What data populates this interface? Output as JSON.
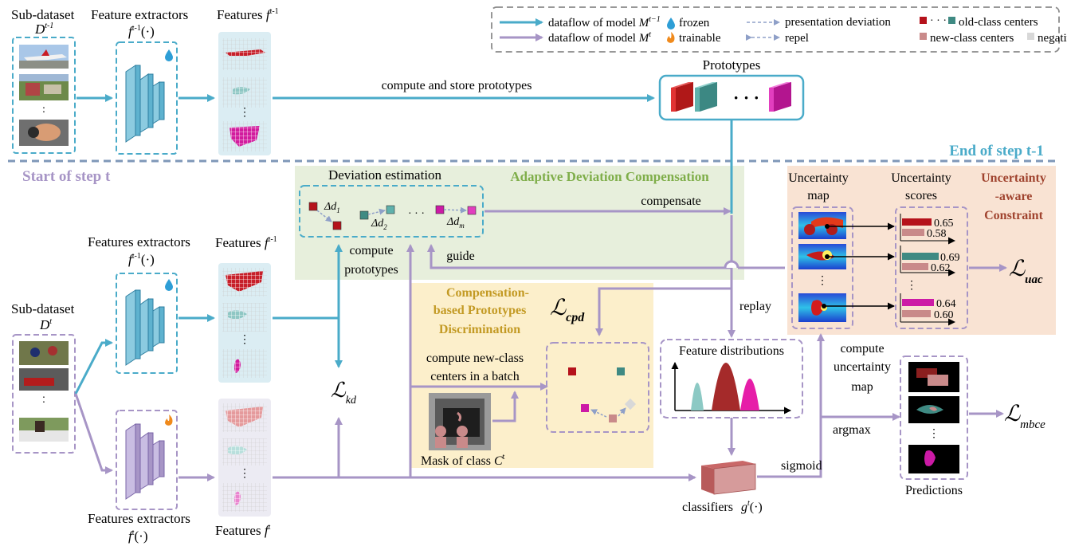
{
  "legend": {
    "dataflow_old": "dataflow of model",
    "dataflow_old_math": "M",
    "dataflow_old_sup": "t−1",
    "dataflow_new": "dataflow of model",
    "dataflow_new_math": "M",
    "dataflow_new_sup": "t",
    "frozen": "frozen",
    "trainable": "trainable",
    "presentation_deviation": "presentation deviation",
    "repel": "repel",
    "old_class_centers": "old-class centers",
    "new_class_centers": "new-class centers",
    "negative_centers": "negative centers"
  },
  "top": {
    "subdataset_label": "Sub-dataset",
    "subdataset_math": "D",
    "subdataset_sup": "t-1",
    "extractor_label": "Feature extractors",
    "extractor_math": "f",
    "extractor_sup": "t-1",
    "extractor_arg": "(·)",
    "features_label": "Features",
    "features_math": "f",
    "features_sup": "t-1",
    "compute_store": "compute and store prototypes",
    "prototypes": "Prototypes",
    "end_of_step": "End of step t-1"
  },
  "bottom": {
    "start_of_step": "Start of step t",
    "subdataset_label": "Sub-dataset",
    "subdataset_math": "D",
    "subdataset_sup": "t",
    "extractor_old_label": "Features extractors",
    "extractor_old_math": "f",
    "extractor_old_sup": "t-1",
    "extractor_old_arg": "(·)",
    "features_old_label": "Features",
    "features_old_math": "f",
    "features_old_sup": "t-1",
    "extractor_new_label": "Features extractors",
    "extractor_new_math": "f",
    "extractor_new_sup": "t",
    "extractor_new_arg": "(·)",
    "features_new_label": "Features",
    "features_new_math": "f",
    "features_new_sup": "t",
    "loss_kd": "kd",
    "compute_prototypes_1": "compute",
    "compute_prototypes_2": "prototypes",
    "guide": "guide",
    "adc_title": "Adaptive Deviation Compensation",
    "deviation_estimation": "Deviation estimation",
    "delta_1": "Δd",
    "delta_1_sub": "1",
    "delta_2": "Δd",
    "delta_2_sub": "2",
    "delta_m": "Δd",
    "delta_m_sub": "m",
    "dots": "· · ·",
    "compensate": "compensate",
    "cpd_title_1": "Compensation-",
    "cpd_title_2": "based Prototypes",
    "cpd_title_3": "Discrimination",
    "loss_cpd": "cpd",
    "compute_new_1": "compute new-class",
    "compute_new_2": "centers in a batch",
    "mask_label": "Mask of class",
    "mask_math": "C",
    "mask_sup": "t",
    "replay": "replay",
    "feature_distributions": "Feature distributions",
    "classifiers": "classifiers",
    "classifiers_math": "g",
    "classifiers_sup": "t",
    "classifiers_arg": "(·)",
    "sigmoid": "sigmoid",
    "argmax": "argmax",
    "compute_uncertainty_1": "compute",
    "compute_uncertainty_2": "uncertainty",
    "compute_uncertainty_3": "map",
    "uncertainty_map_1": "Uncertainty",
    "uncertainty_map_2": "map",
    "uncertainty_scores_1": "Uncertainty",
    "uncertainty_scores_2": "scores",
    "uac_title_1": "Uncertainty",
    "uac_title_2": "-aware",
    "uac_title_3": "Constraint",
    "loss_uac": "uac",
    "predictions": "Predictions",
    "loss_mbce": "mbce",
    "score_1a": "0.65",
    "score_1b": "0.58",
    "score_2a": "0.69",
    "score_2b": "0.62",
    "score_3a": "0.64",
    "score_3b": "0.60"
  },
  "colors": {
    "teal": "#4aabc9",
    "purple": "#a795c6",
    "dash_gray": "#8a8a8a",
    "adc_bg": "#e7efdc",
    "cpd_bg": "#fcefcb",
    "uac_bg": "#f9e3d3",
    "old_red": "#b5121b",
    "old_teal": "#3f8a83",
    "new_magenta": "#cc1aa6",
    "new_pink": "#c98a8a",
    "negative": "#d8d8d8"
  }
}
